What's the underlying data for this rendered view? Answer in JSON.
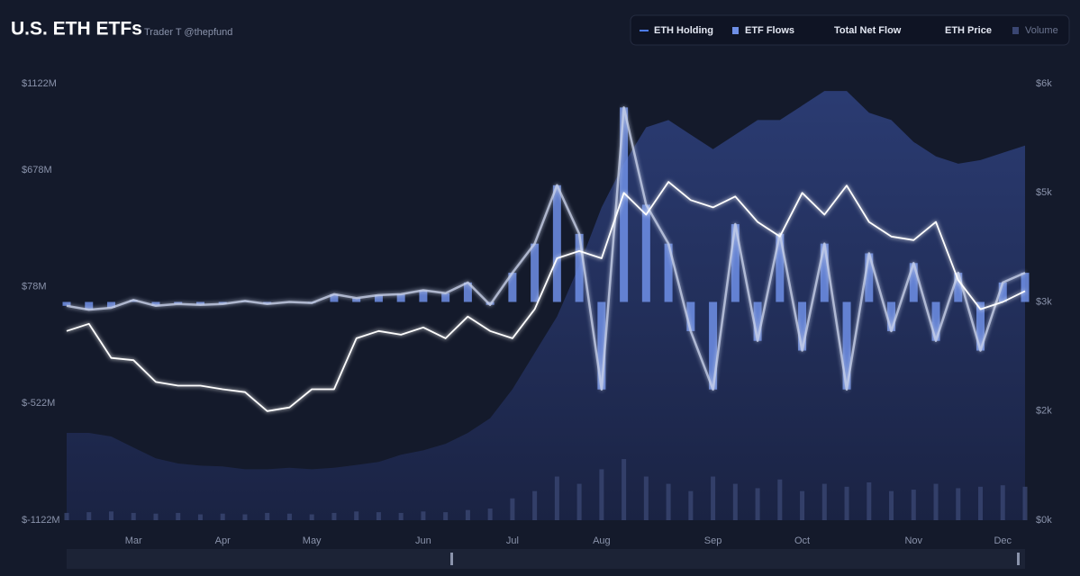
{
  "chart_data": {
    "type": "line",
    "title": "U.S. ETH ETFs",
    "subtitle": "Trader T @thepfund",
    "categories": [
      null,
      null,
      null,
      "Mar",
      null,
      null,
      null,
      "Apr",
      null,
      null,
      null,
      "May",
      null,
      null,
      null,
      null,
      "Jun",
      null,
      null,
      null,
      "Jul",
      null,
      null,
      null,
      "Aug",
      null,
      null,
      null,
      null,
      "Sep",
      null,
      null,
      null,
      "Oct",
      null,
      null,
      null,
      null,
      "Nov",
      null,
      null,
      null,
      "Dec",
      null
    ],
    "series": [
      {
        "name": "ETH Holding",
        "type": "area",
        "axis": "y3",
        "color": "#2c3c72",
        "values": [
          1200,
          1200,
          1150,
          1000,
          850,
          780,
          750,
          740,
          700,
          700,
          720,
          700,
          720,
          760,
          800,
          900,
          960,
          1050,
          1200,
          1400,
          1800,
          2300,
          2800,
          3500,
          4300,
          4900,
          5400,
          5500,
          5300,
          5100,
          5300,
          5500,
          5500,
          5700,
          5900,
          5900,
          5600,
          5500,
          5200,
          5000,
          4900,
          4950,
          5050,
          5150
        ]
      },
      {
        "name": "ETF Flows",
        "type": "bar",
        "color": "#6e8fe6",
        "values": [
          -20,
          -40,
          -30,
          10,
          -20,
          -10,
          -15,
          -10,
          5,
          -10,
          0,
          -5,
          40,
          20,
          35,
          40,
          60,
          45,
          100,
          -15,
          150,
          300,
          600,
          350,
          -450,
          1000,
          500,
          300,
          -150,
          -450,
          400,
          -200,
          350,
          -250,
          300,
          -450,
          250,
          -150,
          200,
          -200,
          150,
          -250,
          100,
          150
        ]
      },
      {
        "name": "Total Net Flow",
        "type": "line",
        "color": "#c9d2ea",
        "values": [
          -20,
          -40,
          -30,
          10,
          -20,
          -10,
          -15,
          -10,
          5,
          -10,
          0,
          -5,
          40,
          20,
          35,
          40,
          60,
          45,
          100,
          -15,
          150,
          300,
          600,
          350,
          -450,
          1000,
          500,
          300,
          -150,
          -450,
          400,
          -200,
          350,
          -250,
          300,
          -450,
          250,
          -150,
          200,
          -200,
          150,
          -250,
          100,
          150
        ]
      },
      {
        "name": "ETH Price",
        "type": "line",
        "axis": "y2",
        "color": "#ffffff",
        "values": [
          2600,
          2700,
          2230,
          2200,
          1900,
          1850,
          1850,
          1800,
          1760,
          1500,
          1550,
          1800,
          1800,
          2500,
          2600,
          2550,
          2650,
          2500,
          2800,
          2600,
          2500,
          2900,
          3600,
          3700,
          3600,
          4500,
          4200,
          4650,
          4400,
          4300,
          4450,
          4100,
          3900,
          4500,
          4200,
          4600,
          4100,
          3900,
          3850,
          4100,
          3300,
          2900,
          3000,
          3150
        ]
      },
      {
        "name": "Volume",
        "type": "bar",
        "axis": "y4",
        "color": "#3a4672",
        "values": [
          50,
          55,
          60,
          50,
          45,
          50,
          40,
          45,
          40,
          50,
          45,
          40,
          50,
          60,
          55,
          50,
          60,
          55,
          70,
          80,
          150,
          200,
          300,
          250,
          350,
          420,
          300,
          250,
          200,
          300,
          250,
          220,
          280,
          200,
          250,
          230,
          260,
          200,
          210,
          250,
          220,
          230,
          240,
          230
        ]
      }
    ],
    "ylim": [
      -1122,
      1122
    ],
    "yticks": [
      {
        "value": -1122,
        "label": "$-1122M"
      },
      {
        "value": -522,
        "label": "$-522M"
      },
      {
        "value": 78,
        "label": "$78M"
      },
      {
        "value": 678,
        "label": "$678M"
      },
      {
        "value": 1122,
        "label": "$1122M"
      }
    ],
    "y2lim": [
      0,
      6000
    ],
    "y2ticks": [
      {
        "value": 0,
        "label": "$0k"
      },
      {
        "value": 1500,
        "label": "$2k"
      },
      {
        "value": 3000,
        "label": "$3k"
      },
      {
        "value": 4500,
        "label": "$5k"
      },
      {
        "value": 6000,
        "label": "$6k"
      }
    ],
    "y3lim": [
      0,
      6000
    ],
    "y4lim": [
      0,
      3000
    ]
  }
}
